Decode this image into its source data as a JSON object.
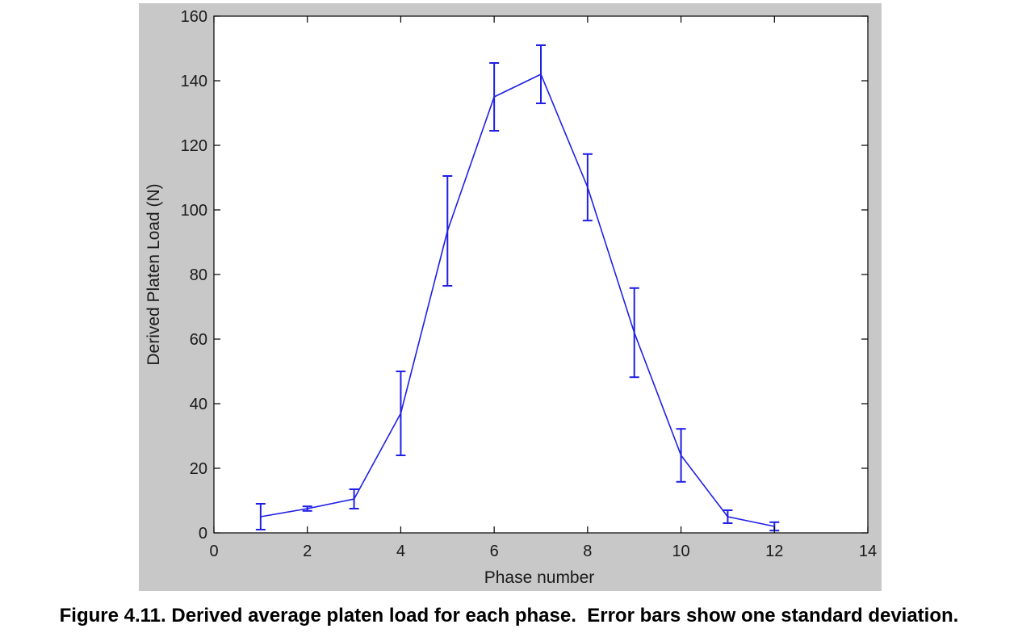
{
  "caption": "Figure 4.11. Derived average platen load for each phase.  Error bars show one standard deviation.",
  "colors": {
    "figure_background": "#c8c8c8",
    "plot_background": "#ffffff",
    "axes": "#000000",
    "series_line": "#1f1fe6"
  },
  "chart_data": {
    "type": "line",
    "title": "",
    "xlabel": "Phase number",
    "ylabel": "Derived Platen Load (N)",
    "xlim": [
      0,
      14
    ],
    "ylim": [
      0,
      160
    ],
    "xticks": [
      0,
      2,
      4,
      6,
      8,
      10,
      12,
      14
    ],
    "yticks": [
      0,
      20,
      40,
      60,
      80,
      100,
      120,
      140,
      160
    ],
    "grid": false,
    "legend": "none",
    "series": [
      {
        "x": [
          1,
          2,
          3,
          4,
          5,
          6,
          7,
          8,
          9,
          10,
          11,
          12
        ],
        "y": [
          5,
          7.5,
          10.5,
          37,
          93.5,
          135,
          142,
          107,
          62,
          24,
          5,
          2
        ],
        "error": [
          4,
          0.7,
          3,
          13,
          17,
          10.5,
          9,
          10.3,
          13.8,
          8.2,
          2,
          1.3
        ]
      }
    ]
  }
}
